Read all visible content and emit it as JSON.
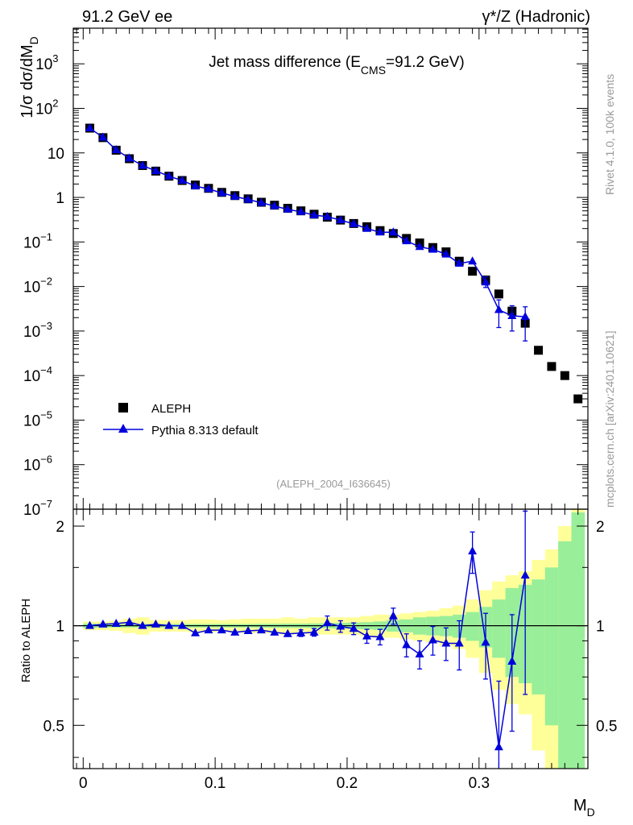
{
  "header": {
    "left": "91.2 GeV ee",
    "right": "γ*/Z (Hadronic)"
  },
  "side_text": {
    "rivet": "Rivet 4.1.0,  100k events",
    "mcplots": "mcplots.cern.ch [arXiv:2401.10621]"
  },
  "colors": {
    "data": "#000000",
    "mc": "#0000dd",
    "band_outer": "#ffff99",
    "band_inner": "#99ee99"
  },
  "chart_data": {
    "type": "line",
    "title_main": "Jet mass difference (E",
    "title_sub": "CMS",
    "title_tail": "=91.2 GeV)",
    "ylabel_main": "1/σ  dσ/dM",
    "ylabel_sub": "D",
    "ratio_ylabel": "Ratio to ALEPH",
    "xlabel_main": "M",
    "xlabel_sub": "D",
    "analysis_tag": "(ALEPH_2004_I636645)",
    "xlim": [
      -0.0075,
      0.3825
    ],
    "ylim_log10": [
      -7.0,
      3.8
    ],
    "ratio_ylim": [
      0.37,
      2.25
    ],
    "x_ticks": [
      0,
      0.1,
      0.2,
      0.3
    ],
    "x_tick_labels": [
      "0",
      "0.1",
      "0.2",
      "0.3"
    ],
    "y_ticks": [
      {
        "exp": 3,
        "base": "10",
        "sup": "3"
      },
      {
        "exp": 2,
        "base": "10",
        "sup": "2"
      },
      {
        "exp": 1,
        "base": "10",
        "sup": ""
      },
      {
        "exp": 0,
        "base": "1",
        "sup": ""
      },
      {
        "exp": -1,
        "base": "10",
        "sup": "−1"
      },
      {
        "exp": -2,
        "base": "10",
        "sup": "−2"
      },
      {
        "exp": -3,
        "base": "10",
        "sup": "−3"
      },
      {
        "exp": -4,
        "base": "10",
        "sup": "−4"
      },
      {
        "exp": -5,
        "base": "10",
        "sup": "−5"
      },
      {
        "exp": -6,
        "base": "10",
        "sup": "−6"
      },
      {
        "exp": -7,
        "base": "10",
        "sup": "−7"
      }
    ],
    "ratio_ticks": [
      0.5,
      1,
      2
    ],
    "ratio_tick_labels": [
      "0.5",
      "1",
      "2"
    ],
    "legend": [
      {
        "name": "ALEPH",
        "kind": "data"
      },
      {
        "name": "Pythia 8.313 default",
        "kind": "mc"
      }
    ],
    "series": [
      {
        "name": "ALEPH",
        "x": [
          0.005,
          0.015,
          0.025,
          0.035,
          0.045,
          0.055,
          0.065,
          0.075,
          0.085,
          0.095,
          0.105,
          0.115,
          0.125,
          0.135,
          0.145,
          0.155,
          0.165,
          0.175,
          0.185,
          0.195,
          0.205,
          0.215,
          0.225,
          0.235,
          0.245,
          0.255,
          0.265,
          0.275,
          0.285,
          0.295,
          0.305,
          0.315,
          0.325,
          0.335,
          0.345,
          0.355,
          0.365,
          0.375
        ],
        "y": [
          36,
          22,
          11.5,
          7.4,
          5.2,
          3.9,
          3.0,
          2.4,
          1.9,
          1.6,
          1.3,
          1.1,
          0.93,
          0.78,
          0.67,
          0.57,
          0.5,
          0.42,
          0.36,
          0.31,
          0.26,
          0.22,
          0.18,
          0.155,
          0.12,
          0.095,
          0.075,
          0.06,
          0.037,
          0.022,
          0.014,
          0.0068,
          0.0028,
          0.0015,
          0.00037,
          0.00016,
          0.0001,
          3e-05
        ]
      },
      {
        "name": "Pythia 8.313 default",
        "x": [
          0.005,
          0.015,
          0.025,
          0.035,
          0.045,
          0.055,
          0.065,
          0.075,
          0.085,
          0.095,
          0.105,
          0.115,
          0.125,
          0.135,
          0.145,
          0.155,
          0.165,
          0.175,
          0.185,
          0.195,
          0.205,
          0.215,
          0.225,
          0.235,
          0.245,
          0.255,
          0.265,
          0.275,
          0.285,
          0.295,
          0.305,
          0.315,
          0.325,
          0.335
        ],
        "y": [
          36,
          22.3,
          11.7,
          7.6,
          5.2,
          3.95,
          3.0,
          2.4,
          1.8,
          1.55,
          1.26,
          1.05,
          0.9,
          0.76,
          0.64,
          0.54,
          0.475,
          0.4,
          0.37,
          0.31,
          0.255,
          0.2,
          0.165,
          0.165,
          0.105,
          0.078,
          0.068,
          0.053,
          0.033,
          0.037,
          0.0125,
          0.003,
          0.0022,
          0.0021
        ],
        "yerr_lo": [
          0,
          0,
          0,
          0,
          0,
          0,
          0,
          0,
          0,
          0,
          0,
          0,
          0,
          0,
          0,
          0,
          0,
          0,
          0,
          0,
          0,
          0,
          0,
          0,
          0,
          0,
          0,
          0,
          0,
          0,
          0.003,
          0.0018,
          0.0012,
          0.0015
        ],
        "yerr_hi": [
          0,
          0,
          0,
          0,
          0,
          0,
          0,
          0,
          0,
          0,
          0,
          0,
          0,
          0,
          0,
          0,
          0,
          0,
          0,
          0,
          0,
          0,
          0,
          0,
          0,
          0,
          0,
          0,
          0,
          0,
          0.004,
          0.002,
          0.0015,
          0.0014
        ],
        "ratio": [
          1.0,
          1.01,
          1.015,
          1.025,
          1.0,
          1.01,
          1.0,
          1.0,
          0.95,
          0.97,
          0.97,
          0.955,
          0.965,
          0.97,
          0.955,
          0.945,
          0.95,
          0.955,
          1.02,
          0.995,
          0.98,
          0.93,
          0.925,
          1.07,
          0.875,
          0.82,
          0.905,
          0.885,
          0.885,
          1.68,
          0.89,
          0.43,
          0.78,
          1.42
        ],
        "ratio_err": [
          0.008,
          0.008,
          0.008,
          0.008,
          0.008,
          0.008,
          0.008,
          0.008,
          0.01,
          0.01,
          0.01,
          0.012,
          0.012,
          0.015,
          0.017,
          0.02,
          0.022,
          0.025,
          0.05,
          0.04,
          0.04,
          0.045,
          0.05,
          0.06,
          0.07,
          0.08,
          0.09,
          0.1,
          0.15,
          0.24,
          0.2,
          0.25,
          0.3,
          0.8
        ]
      }
    ],
    "ratio_band": {
      "edges": [
        0.0,
        0.01,
        0.02,
        0.03,
        0.04,
        0.05,
        0.06,
        0.07,
        0.08,
        0.09,
        0.1,
        0.11,
        0.12,
        0.13,
        0.14,
        0.15,
        0.16,
        0.17,
        0.18,
        0.19,
        0.2,
        0.21,
        0.22,
        0.23,
        0.24,
        0.25,
        0.26,
        0.27,
        0.28,
        0.29,
        0.3,
        0.31,
        0.32,
        0.33,
        0.34,
        0.35,
        0.36,
        0.37,
        0.38
      ],
      "inner": [
        0.015,
        0.012,
        0.012,
        0.012,
        0.012,
        0.012,
        0.012,
        0.012,
        0.012,
        0.012,
        0.012,
        0.012,
        0.012,
        0.013,
        0.014,
        0.015,
        0.015,
        0.016,
        0.018,
        0.02,
        0.022,
        0.025,
        0.03,
        0.04,
        0.045,
        0.06,
        0.065,
        0.07,
        0.08,
        0.1,
        0.14,
        0.2,
        0.3,
        0.33,
        0.38,
        0.5,
        0.8,
        1.2
      ],
      "outer": [
        0.03,
        0.03,
        0.035,
        0.05,
        0.06,
        0.04,
        0.04,
        0.04,
        0.045,
        0.045,
        0.04,
        0.045,
        0.05,
        0.05,
        0.05,
        0.06,
        0.05,
        0.06,
        0.06,
        0.06,
        0.06,
        0.07,
        0.08,
        0.08,
        0.09,
        0.1,
        0.11,
        0.13,
        0.15,
        0.2,
        0.28,
        0.36,
        0.42,
        0.46,
        0.58,
        0.7,
        1.0,
        1.4
      ]
    }
  }
}
